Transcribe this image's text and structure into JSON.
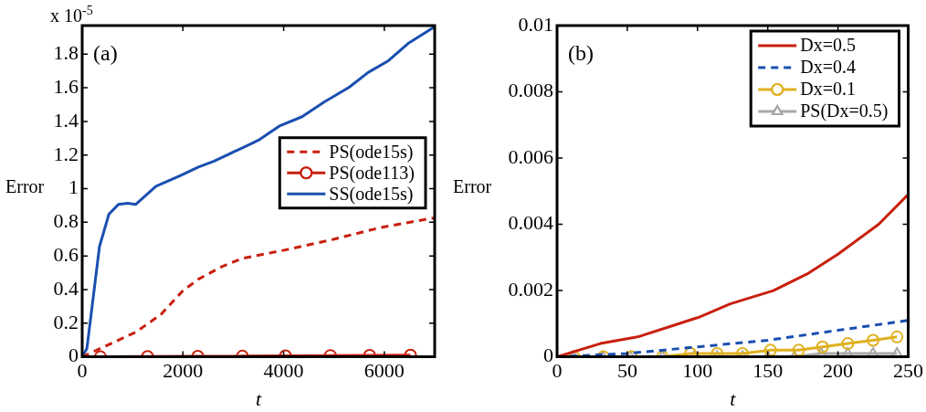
{
  "chart_data": [
    {
      "type": "line",
      "xlabel": "t",
      "ylabel": "Error",
      "annotations": [
        "(a)",
        "x 10$^{-5}$"
      ],
      "xlim": [
        0,
        7000
      ],
      "xticks": [
        0,
        2000,
        4000,
        6000
      ],
      "ylim": [
        0,
        1.97
      ],
      "yticks": [
        0,
        0.2,
        0.4,
        0.6,
        0.8,
        1,
        1.2,
        1.4,
        1.6,
        1.8
      ],
      "grid": false,
      "legend": "right",
      "series": [
        {
          "name": "PS(ode15s)",
          "color": "#c8200e",
          "line_style": "dashed",
          "marker": "none",
          "x": [
            0,
            1060,
            1560,
            1996,
            2308,
            2807,
            3182,
            4055,
            4991,
            5926,
            7000
          ],
          "values": [
            0,
            0.146,
            0.251,
            0.392,
            0.462,
            0.541,
            0.585,
            0.637,
            0.699,
            0.769,
            0.827
          ]
        },
        {
          "name": "PS(ode113)",
          "color": "#c8200e",
          "line_style": "solid",
          "marker": "circle",
          "x": [
            362,
            1298,
            2296,
            3182,
            4036,
            4928,
            5708,
            6519
          ],
          "values": [
            0,
            0.002,
            0.003,
            0.004,
            0.006,
            0.008,
            0.009,
            0.01
          ]
        },
        {
          "name": "SS(ode15s)",
          "color": "#1a4fb0",
          "line_style": "solid",
          "marker": "none",
          "x": [
            0,
            94,
            343,
            530,
            717,
            905,
            1060,
            1466,
            1934,
            2308,
            2620,
            3182,
            3494,
            3930,
            4367,
            4803,
            5302,
            5677,
            6082,
            6488,
            7000
          ],
          "values": [
            0,
            0.05,
            0.655,
            0.848,
            0.906,
            0.913,
            0.906,
            1.015,
            1.076,
            1.129,
            1.164,
            1.243,
            1.287,
            1.375,
            1.428,
            1.515,
            1.603,
            1.691,
            1.761,
            1.867,
            1.963
          ]
        }
      ]
    },
    {
      "type": "line",
      "xlabel": "t",
      "ylabel": "Error",
      "annotations": [
        "(b)"
      ],
      "xlim": [
        0,
        250
      ],
      "xticks": [
        0,
        50,
        100,
        150,
        200,
        250
      ],
      "ylim": [
        0,
        0.01
      ],
      "yticks": [
        0,
        0.002,
        0.004,
        0.006,
        0.008,
        0.01
      ],
      "grid": false,
      "legend": "top right",
      "series": [
        {
          "name": "Dx=0.5",
          "color": "#c8200e",
          "line_style": "solid",
          "marker": "none",
          "x": [
            0,
            30.8,
            57.3,
            79.3,
            101.3,
            123.3,
            154,
            178,
            200,
            229,
            250
          ],
          "values": [
            0,
            0.0004,
            0.0006,
            0.0009,
            0.0012,
            0.0016,
            0.002,
            0.0025,
            0.0031,
            0.004,
            0.0049
          ]
        },
        {
          "name": "Dx=0.4",
          "color": "#1a4fb0",
          "line_style": "dashed",
          "marker": "none",
          "x": [
            0,
            50,
            100,
            150,
            200,
            250
          ],
          "values": [
            0,
            0.0001,
            0.0003,
            0.0005,
            0.0008,
            0.0011
          ]
        },
        {
          "name": "Dx=0.1",
          "color": "#e0b020",
          "line_style": "solid",
          "marker": "circle",
          "x": [
            12,
            33,
            53,
            75,
            95,
            114,
            132,
            152,
            172,
            189,
            207,
            225,
            242
          ],
          "values": [
            0,
            0,
            0,
            0,
            0.0001,
            0.0001,
            0.0001,
            0.0002,
            0.0002,
            0.0003,
            0.0004,
            0.0005,
            0.0006
          ]
        },
        {
          "name": "PS(Dx=0.5)",
          "color": "#a8a8a8",
          "line_style": "solid",
          "marker": "triangle",
          "x": [
            11.7,
            32.6,
            52.2,
            75,
            97.6,
            114,
            132,
            150,
            169,
            188,
            207,
            225,
            242
          ],
          "values": [
            0,
            0,
            0,
            0,
            0,
            0,
            0,
            0,
            0,
            0.0001,
            0.0001,
            0.0001,
            0.0001
          ]
        }
      ]
    }
  ]
}
